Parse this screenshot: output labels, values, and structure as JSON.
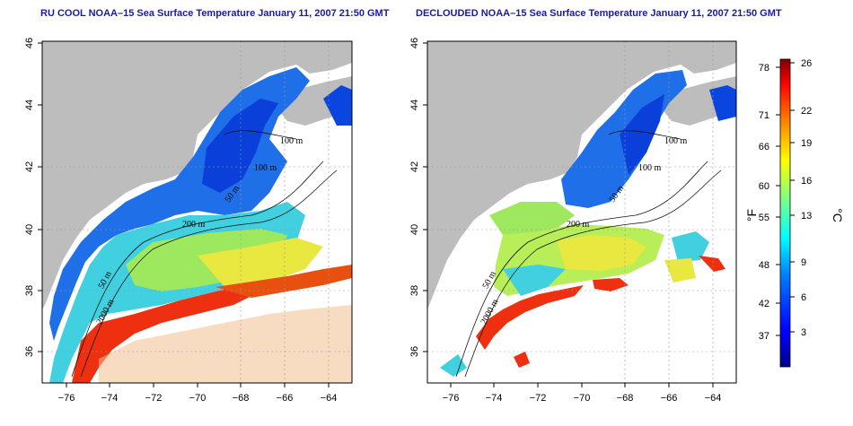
{
  "panels": [
    {
      "title": "RU COOL NOAA–15 Sea Surface Temperature January 11, 2007 21:50 GMT",
      "y_ticks": [
        "36",
        "38",
        "40",
        "42",
        "44",
        "46"
      ],
      "x_ticks": [
        "−76",
        "−74",
        "−72",
        "−70",
        "−68",
        "−66",
        "−64"
      ],
      "contour_labels": [
        "100 m",
        "100 m",
        "50 m",
        "200 m",
        "50 m",
        "2000 m"
      ]
    },
    {
      "title": "DECLOUDED NOAA–15 Sea Surface Temperature January 11, 2007 21:50 GMT",
      "y_ticks": [
        "36",
        "38",
        "40",
        "42",
        "44",
        "46"
      ],
      "x_ticks": [
        "−76",
        "−74",
        "−72",
        "−70",
        "−68",
        "−66",
        "−64"
      ],
      "contour_labels": [
        "100 m",
        "100 m",
        "50 m",
        "200 m",
        "50 m",
        "2000 m"
      ]
    }
  ],
  "colorbar": {
    "f_unit": "°F",
    "c_unit": "°C",
    "f_ticks": [
      "78",
      "71",
      "66",
      "60",
      "55",
      "48",
      "42",
      "37"
    ],
    "c_ticks": [
      "26",
      "22",
      "19",
      "16",
      "13",
      "9",
      "6",
      "3"
    ],
    "colors": [
      "#00008f",
      "#0000ff",
      "#0080ff",
      "#00ffff",
      "#80ff80",
      "#ffff00",
      "#ff8000",
      "#ff0000",
      "#800000"
    ]
  },
  "colors": {
    "land": "#bdbdbd",
    "title": "#1a1aa6",
    "grid": "#9a9a9a"
  }
}
